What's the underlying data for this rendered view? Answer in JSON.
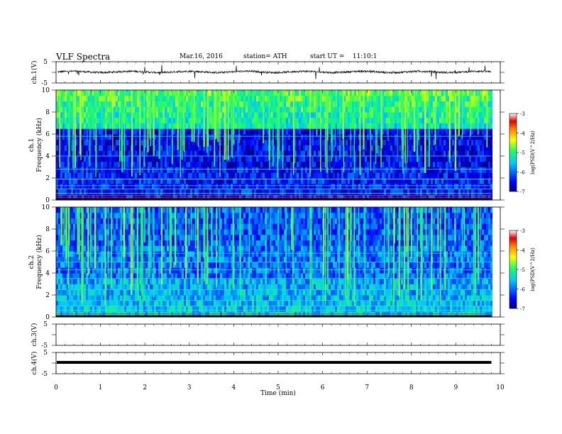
{
  "header": {
    "title": "VLF Spectra",
    "date": "Mar.16, 2016",
    "station": "station= ATH",
    "start": "start UT =    11:10:1"
  },
  "chart_data": [
    {
      "type": "line",
      "panel": "ch1",
      "ylabel": "ch.1(V)",
      "ylim": [
        -5,
        5
      ],
      "ytick_labels": [
        "5",
        "-5"
      ],
      "note": "noisy time series around +0.2 V with sparse spikes"
    },
    {
      "type": "heatmap",
      "panel": "ch1-spectrogram",
      "ylabel_lines": [
        "ch.1",
        "Frequency  (kHz)"
      ],
      "ylim": [
        0,
        10
      ],
      "yticks": [
        0,
        2,
        4,
        6,
        8,
        10
      ],
      "colorbar": {
        "label": "log(PSD(V^2/Hz)",
        "range": [
          -7,
          -3
        ],
        "ticks": [
          "-3",
          "-4",
          "-5",
          "-6",
          "-7"
        ],
        "colormap": "jet"
      }
    },
    {
      "type": "heatmap",
      "panel": "ch2-spectrogram",
      "ylabel_lines": [
        "ch.2",
        "Frequency  (kHz)"
      ],
      "ylim": [
        0,
        10
      ],
      "yticks": [
        0,
        2,
        4,
        6,
        8,
        10
      ],
      "colorbar": {
        "label": "log(PSD(V^2/Hz)",
        "range": [
          -7,
          -3
        ],
        "ticks": [
          "-3",
          "-4",
          "-5",
          "-6",
          "-7"
        ],
        "colormap": "jet"
      }
    },
    {
      "type": "line",
      "panel": "ch3",
      "ylabel": "ch.3(V)",
      "ylim": [
        -5,
        5
      ],
      "ytick_labels": [
        "5",
        "-5"
      ],
      "note": "no signal"
    },
    {
      "type": "line",
      "panel": "ch4",
      "ylabel": "ch.4(V)",
      "ylim": [
        -5,
        5
      ],
      "ytick_labels": [
        "5",
        "-5"
      ],
      "note": "thick flat line near 0 V"
    }
  ],
  "xaxis": {
    "label": "Time  (min)",
    "xlim": [
      0,
      10
    ],
    "ticks": [
      "0",
      "1",
      "2",
      "3",
      "4",
      "5",
      "6",
      "7",
      "8",
      "9",
      "10"
    ],
    "data_end": 9.8
  }
}
